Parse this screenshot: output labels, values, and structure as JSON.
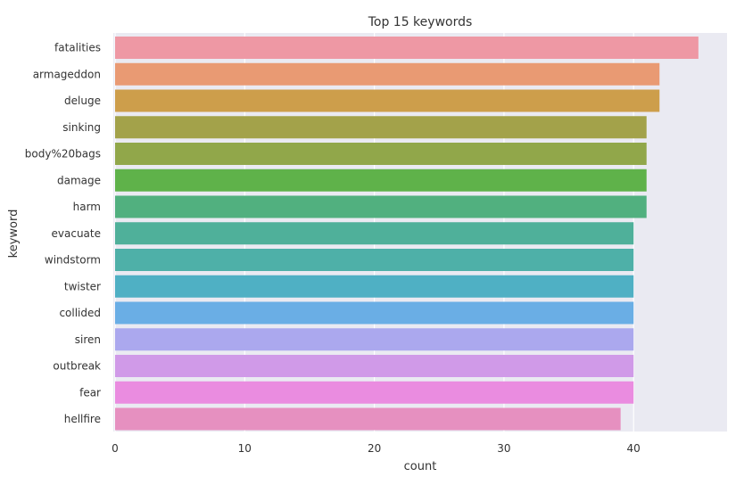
{
  "chart_data": {
    "type": "bar",
    "orientation": "horizontal",
    "title": "Top 15 keywords",
    "xlabel": "count",
    "ylabel": "keyword",
    "xlim": [
      0,
      47
    ],
    "xticks": [
      0,
      10,
      20,
      30,
      40
    ],
    "grid": true,
    "categories": [
      "fatalities",
      "armageddon",
      "deluge",
      "sinking",
      "body%20bags",
      "damage",
      "harm",
      "evacuate",
      "windstorm",
      "twister",
      "collided",
      "siren",
      "outbreak",
      "fear",
      "hellfire"
    ],
    "values": [
      45,
      42,
      42,
      41,
      41,
      41,
      41,
      40,
      40,
      40,
      40,
      40,
      40,
      40,
      39
    ],
    "colors": [
      "#ee98a4",
      "#e99a73",
      "#cd9e4b",
      "#a3a24a",
      "#91a74a",
      "#5fb24a",
      "#51b07f",
      "#4fb09a",
      "#4eb0a8",
      "#4fb0c4",
      "#6aaee5",
      "#aba8ee",
      "#d09ae8",
      "#ea8ce0",
      "#e690c0"
    ],
    "plot_background": "#eaeaf2",
    "grid_color": "#ffffff"
  }
}
